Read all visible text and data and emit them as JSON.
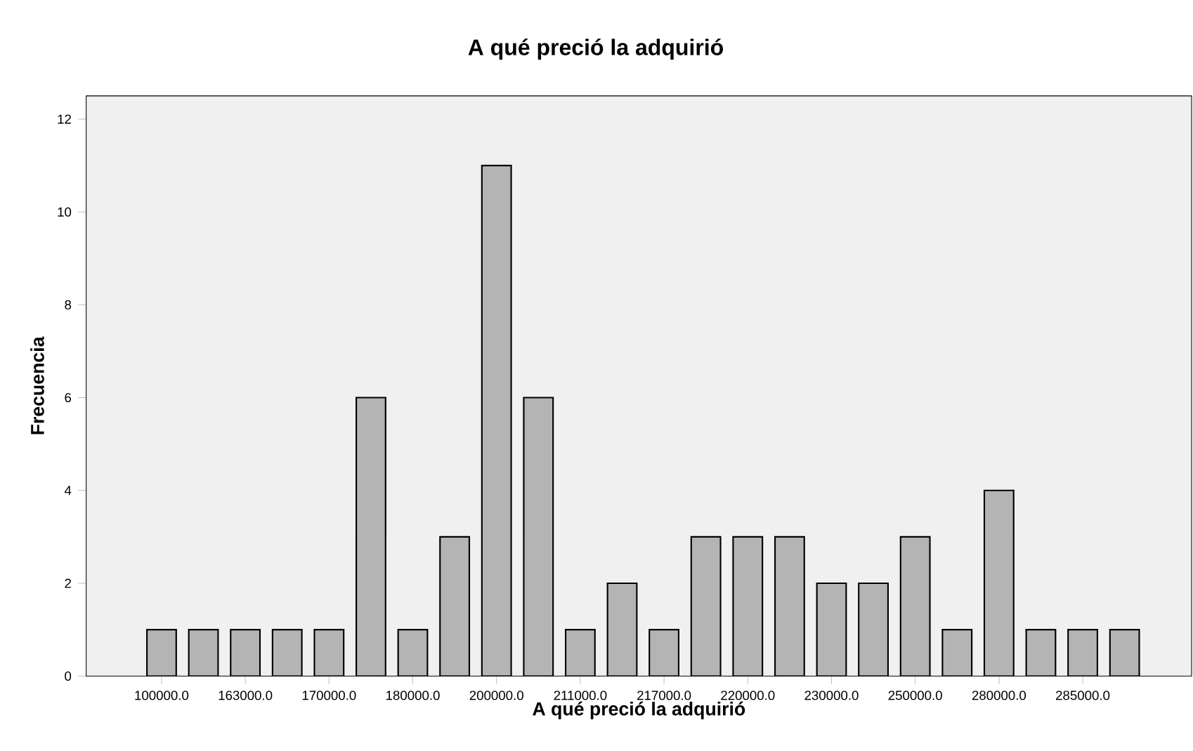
{
  "chart_data": {
    "type": "bar",
    "title": "A qué preció la adquirió",
    "xlabel": "A qué preció la adquirió",
    "ylabel": "Frecuencia",
    "categories": [
      "100000.0",
      null,
      "163000.0",
      null,
      "170000.0",
      null,
      "180000.0",
      null,
      "200000.0",
      null,
      "211000.0",
      null,
      "217000.0",
      null,
      "220000.0",
      null,
      "230000.0",
      null,
      "250000.0",
      null,
      "280000.0",
      null,
      "285000.0",
      null
    ],
    "values": [
      1,
      1,
      1,
      1,
      1,
      6,
      1,
      3,
      11,
      6,
      1,
      2,
      1,
      3,
      3,
      3,
      2,
      2,
      3,
      1,
      4,
      1,
      1,
      1
    ],
    "color": "#b4b4b4",
    "ylim": [
      0,
      12.5
    ],
    "yticks": [
      0,
      2,
      4,
      6,
      8,
      10,
      12
    ],
    "grid": false
  }
}
